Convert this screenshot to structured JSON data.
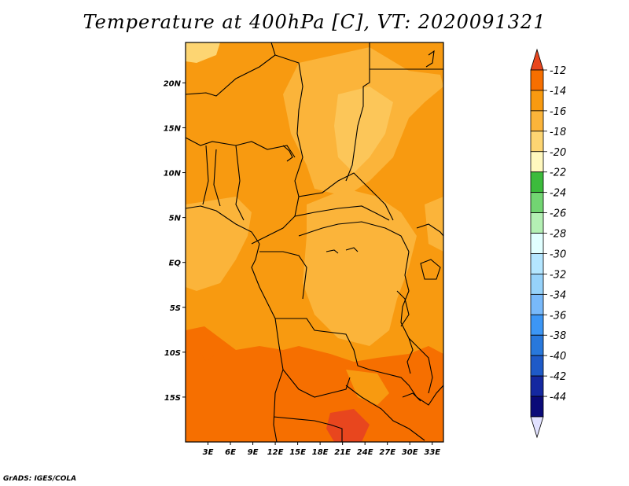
{
  "title": "Temperature at 400hPa [C], VT: 2020091321",
  "credit": "GrADS: IGES/COLA",
  "map": {
    "lon_ticks": [
      "3E",
      "6E",
      "9E",
      "12E",
      "15E",
      "18E",
      "21E",
      "24E",
      "27E",
      "30E",
      "33E"
    ],
    "lat_ticks": [
      "20N",
      "15N",
      "10N",
      "5N",
      "EQ",
      "5S",
      "10S",
      "15S"
    ],
    "lon_range": [
      0,
      34.5
    ],
    "lat_range": [
      -20,
      24.5
    ]
  },
  "colorbar": {
    "levels": [
      "-12",
      "-14",
      "-16",
      "-18",
      "-20",
      "-22",
      "-24",
      "-26",
      "-28",
      "-30",
      "-32",
      "-34",
      "-36",
      "-38",
      "-40",
      "-42",
      "-44"
    ],
    "colors": [
      "#e8461e",
      "#f66f00",
      "#f89a10",
      "#fbb43a",
      "#fdd572",
      "#fff8be",
      "#3cbb3c",
      "#72d572",
      "#b4f0b4",
      "#e1ffff",
      "#b4e6ff",
      "#96d2fa",
      "#78b9fa",
      "#3c96f5",
      "#2878dc",
      "#1e5ac8",
      "#1428a0",
      "#0a0a78",
      "#e1e1ff"
    ],
    "color_names": [
      "red-orange",
      "orange",
      "orange-amber",
      "light-orange",
      "pale-orange",
      "pale-yellow",
      "green",
      "light-green",
      "pale-green",
      "very-pale-cyan",
      "pale-blue",
      "light-blue",
      "sky-blue",
      "blue",
      "medium-blue",
      "deep-blue",
      "navy",
      "dark-navy",
      "lavender"
    ]
  }
}
